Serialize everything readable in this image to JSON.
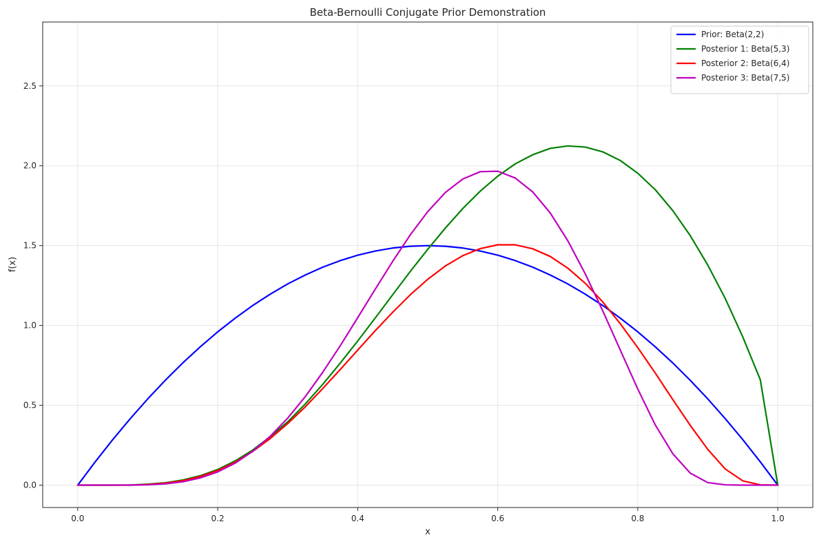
{
  "chart_data": {
    "type": "line",
    "title": "Beta-Bernoulli Conjugate Prior Demonstration",
    "xlabel": "x",
    "ylabel": "f(x)",
    "xlim": [
      -0.05,
      1.05
    ],
    "ylim": [
      -0.14,
      2.9
    ],
    "xticks": [
      0.0,
      0.2,
      0.4,
      0.6,
      0.8,
      1.0
    ],
    "xtick_labels": [
      "0.0",
      "0.2",
      "0.4",
      "0.6",
      "0.8",
      "1.0"
    ],
    "yticks": [
      0.0,
      0.5,
      1.0,
      1.5,
      2.0,
      2.5
    ],
    "ytick_labels": [
      "0.0",
      "0.5",
      "1.0",
      "1.5",
      "2.0",
      "2.5"
    ],
    "grid": true,
    "legend_position": "top-right",
    "x": [
      0.0,
      0.025,
      0.05,
      0.075,
      0.1,
      0.125,
      0.15,
      0.175,
      0.2,
      0.225,
      0.25,
      0.275,
      0.3,
      0.325,
      0.35,
      0.375,
      0.4,
      0.425,
      0.45,
      0.475,
      0.5,
      0.525,
      0.55,
      0.575,
      0.6,
      0.625,
      0.65,
      0.675,
      0.7,
      0.725,
      0.75,
      0.775,
      0.8,
      0.825,
      0.85,
      0.875,
      0.9,
      0.925,
      0.95,
      0.975,
      1.0
    ],
    "series": [
      {
        "name": "Prior: Beta(2,2)",
        "color": "#0000ff",
        "values": [
          0.0,
          0.146,
          0.285,
          0.416,
          0.54,
          0.656,
          0.765,
          0.866,
          0.96,
          1.046,
          1.125,
          1.196,
          1.26,
          1.316,
          1.365,
          1.406,
          1.44,
          1.466,
          1.485,
          1.496,
          1.5,
          1.496,
          1.485,
          1.466,
          1.44,
          1.406,
          1.365,
          1.316,
          1.26,
          1.196,
          1.125,
          1.046,
          0.96,
          0.866,
          0.765,
          0.656,
          0.54,
          0.416,
          0.285,
          0.146,
          0.0
        ]
      },
      {
        "name": "Posterior 1: Beta(5,3)",
        "color": "#008000",
        "values": [
          0.0,
          0.0,
          0.0,
          0.001,
          0.006,
          0.015,
          0.032,
          0.059,
          0.098,
          0.152,
          0.22,
          0.304,
          0.397,
          0.508,
          0.631,
          0.764,
          0.903,
          1.047,
          1.193,
          1.338,
          1.477,
          1.609,
          1.732,
          1.841,
          1.935,
          2.012,
          2.069,
          2.109,
          2.124,
          2.117,
          2.087,
          2.033,
          1.953,
          1.85,
          1.719,
          1.562,
          1.378,
          1.168,
          0.928,
          0.66,
          0.0
        ]
      },
      {
        "name": "Posterior 2: Beta(6,4)",
        "color": "#ff0000",
        "values": [
          0.0,
          0.0,
          0.0,
          0.0,
          0.004,
          0.012,
          0.028,
          0.054,
          0.092,
          0.144,
          0.211,
          0.292,
          0.386,
          0.49,
          0.605,
          0.724,
          0.846,
          0.967,
          1.083,
          1.192,
          1.289,
          1.372,
          1.437,
          1.481,
          1.505,
          1.505,
          1.48,
          1.432,
          1.359,
          1.264,
          1.147,
          1.011,
          0.861,
          0.702,
          0.536,
          0.374,
          0.224,
          0.101,
          0.027,
          0.002,
          0.0
        ]
      },
      {
        "name": "Posterior 3: Beta(7,5)",
        "color": "#bf00bf",
        "values": [
          0.0,
          0.0,
          0.0,
          0.0,
          0.002,
          0.008,
          0.021,
          0.045,
          0.083,
          0.138,
          0.212,
          0.306,
          0.42,
          0.554,
          0.707,
          0.873,
          1.049,
          1.227,
          1.402,
          1.567,
          1.713,
          1.832,
          1.917,
          1.963,
          1.966,
          1.923,
          1.836,
          1.704,
          1.531,
          1.323,
          1.091,
          0.846,
          0.602,
          0.377,
          0.197,
          0.075,
          0.016,
          0.002,
          0.0,
          0.0,
          0.0
        ]
      }
    ]
  }
}
